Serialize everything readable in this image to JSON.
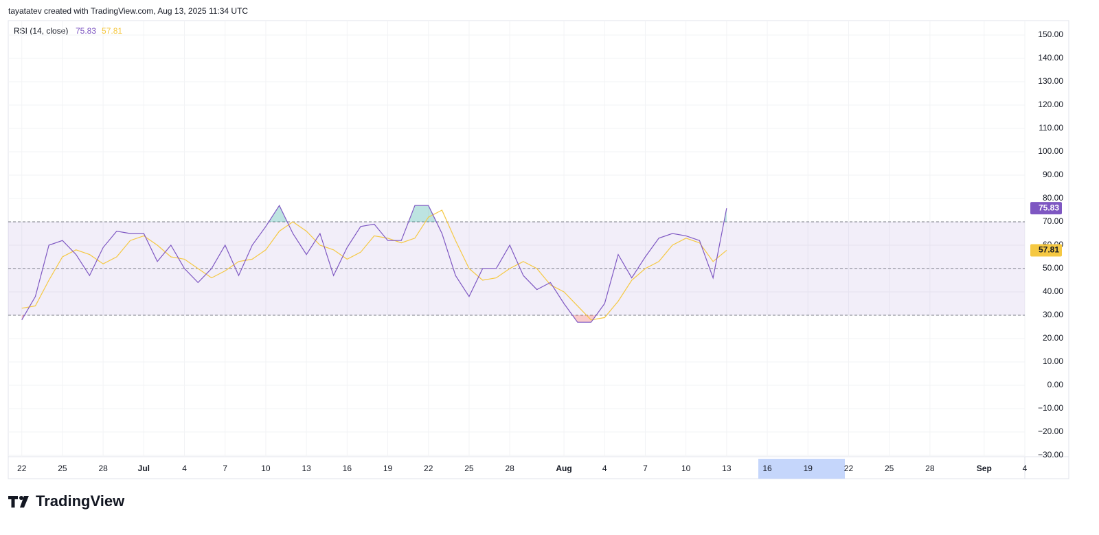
{
  "header": "tayatatev created with TradingView.com, Aug 13, 2025 11:34 UTC",
  "footer": {
    "brand": "TradingView"
  },
  "chart_data": {
    "type": "line",
    "title": "RSI (14, close)",
    "x": [
      "2025-06-22",
      "2025-06-23",
      "2025-06-24",
      "2025-06-25",
      "2025-06-26",
      "2025-06-27",
      "2025-06-28",
      "2025-06-29",
      "2025-06-30",
      "2025-07-01",
      "2025-07-02",
      "2025-07-03",
      "2025-07-04",
      "2025-07-05",
      "2025-07-06",
      "2025-07-07",
      "2025-07-08",
      "2025-07-09",
      "2025-07-10",
      "2025-07-11",
      "2025-07-12",
      "2025-07-13",
      "2025-07-14",
      "2025-07-15",
      "2025-07-16",
      "2025-07-17",
      "2025-07-18",
      "2025-07-19",
      "2025-07-20",
      "2025-07-21",
      "2025-07-22",
      "2025-07-23",
      "2025-07-24",
      "2025-07-25",
      "2025-07-26",
      "2025-07-27",
      "2025-07-28",
      "2025-07-29",
      "2025-07-30",
      "2025-07-31",
      "2025-08-01",
      "2025-08-02",
      "2025-08-03",
      "2025-08-04",
      "2025-08-05",
      "2025-08-06",
      "2025-08-07",
      "2025-08-08",
      "2025-08-09",
      "2025-08-10",
      "2025-08-11",
      "2025-08-12",
      "2025-08-13"
    ],
    "series": [
      {
        "color": "#7e57c2",
        "values": [
          28,
          38,
          60,
          62,
          56,
          47,
          59,
          66,
          65,
          65,
          53,
          60,
          50,
          44,
          50,
          60,
          47,
          60,
          68,
          77,
          65,
          56,
          65,
          47,
          59,
          68,
          69,
          62,
          62,
          77,
          77,
          65,
          47,
          38,
          50,
          50,
          60,
          47,
          41,
          44,
          35,
          27,
          27,
          35,
          56,
          46,
          55,
          63,
          65,
          64,
          62,
          46,
          75.83
        ]
      },
      {
        "color": "#f5c842",
        "values": [
          33,
          34,
          45,
          55,
          58,
          56,
          52,
          55,
          62,
          64,
          60,
          55,
          54,
          50,
          46,
          49,
          53,
          54,
          58,
          66,
          70,
          66,
          60,
          58,
          54,
          57,
          64,
          63,
          61,
          63,
          72,
          75,
          62,
          50,
          45,
          46,
          50,
          53,
          50,
          43,
          40,
          34,
          28,
          29,
          36,
          45,
          50,
          53,
          60,
          63,
          61,
          53,
          57.81
        ]
      }
    ],
    "bands": {
      "upper": 70,
      "middle": 50,
      "lower": 30
    },
    "band_color": "#7e57c2",
    "ylim": [
      -30,
      150
    ],
    "yticks": [
      {
        "value": 150,
        "label": "150.00"
      },
      {
        "value": 140,
        "label": "140.00"
      },
      {
        "value": 130,
        "label": "130.00"
      },
      {
        "value": 120,
        "label": "120.00"
      },
      {
        "value": 110,
        "label": "110.00"
      },
      {
        "value": 100,
        "label": "100.00"
      },
      {
        "value": 90,
        "label": "90.00"
      },
      {
        "value": 80,
        "label": "80.00"
      },
      {
        "value": 70,
        "label": "70.00"
      },
      {
        "value": 60,
        "label": "60.00"
      },
      {
        "value": 50,
        "label": "50.00"
      },
      {
        "value": 40,
        "label": "40.00"
      },
      {
        "value": 30,
        "label": "30.00"
      },
      {
        "value": 20,
        "label": "20.00"
      },
      {
        "value": 10,
        "label": "10.00"
      },
      {
        "value": 0,
        "label": "0.00"
      },
      {
        "value": -10,
        "label": "−10.00"
      },
      {
        "value": -20,
        "label": "−20.00"
      },
      {
        "value": -30,
        "label": "−30.00"
      }
    ],
    "xlim": [
      "2025-06-21",
      "2025-09-04"
    ],
    "xticks": [
      {
        "value": "2025-06-22",
        "label": "22"
      },
      {
        "value": "2025-06-25",
        "label": "25"
      },
      {
        "value": "2025-06-28",
        "label": "28"
      },
      {
        "value": "2025-07-01",
        "label": "Jul"
      },
      {
        "value": "2025-07-04",
        "label": "4"
      },
      {
        "value": "2025-07-07",
        "label": "7"
      },
      {
        "value": "2025-07-10",
        "label": "10"
      },
      {
        "value": "2025-07-13",
        "label": "13"
      },
      {
        "value": "2025-07-16",
        "label": "16"
      },
      {
        "value": "2025-07-19",
        "label": "19"
      },
      {
        "value": "2025-07-22",
        "label": "22"
      },
      {
        "value": "2025-07-25",
        "label": "25"
      },
      {
        "value": "2025-07-28",
        "label": "28"
      },
      {
        "value": "2025-08-01",
        "label": "Aug"
      },
      {
        "value": "2025-08-04",
        "label": "4"
      },
      {
        "value": "2025-08-07",
        "label": "7"
      },
      {
        "value": "2025-08-10",
        "label": "10"
      },
      {
        "value": "2025-08-13",
        "label": "13"
      },
      {
        "value": "2025-08-16",
        "label": "16"
      },
      {
        "value": "2025-08-19",
        "label": "19"
      },
      {
        "value": "2025-08-22",
        "label": "22"
      },
      {
        "value": "2025-08-25",
        "label": "25"
      },
      {
        "value": "2025-08-28",
        "label": "28"
      },
      {
        "value": "2025-09-01",
        "label": "Sep"
      },
      {
        "value": "2025-09-04",
        "label": "4"
      }
    ],
    "grid": true
  }
}
